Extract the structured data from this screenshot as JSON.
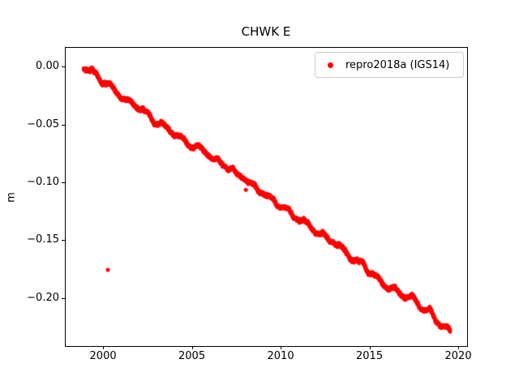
{
  "chart_data": {
    "type": "scatter",
    "title": "CHWK E",
    "xlabel": "",
    "ylabel": "m",
    "background": "#ffffff",
    "grid": false,
    "xlim": [
      1997.85,
      2020.5
    ],
    "ylim": [
      -0.2413,
      0.0168
    ],
    "xticks": {
      "values": [
        2000,
        2005,
        2010,
        2015,
        2020
      ],
      "labels": [
        "2000",
        "2005",
        "2010",
        "2015",
        "2020"
      ]
    },
    "yticks": {
      "values": [
        0.0,
        -0.05,
        -0.1,
        -0.15,
        -0.2
      ],
      "labels": [
        "0.00",
        "−0.05",
        "−0.10",
        "−0.15",
        "−0.20"
      ]
    },
    "legend": {
      "label": "repro2018a (IGS14)",
      "position": "upper right",
      "marker_color": "#ff0000",
      "border_color": "#cccccc"
    },
    "series": [
      {
        "name": "repro2018a (IGS14)",
        "color": "#ff0000",
        "marker": "dot",
        "marker_radius_px": 2.2,
        "trend": {
          "t_start": 1998.9,
          "t_end": 2019.55,
          "v_start": 0.0,
          "v_end": -0.2255,
          "slope_m_per_yr": -0.01092
        },
        "seasonal_amplitude_m": 0.0021,
        "noise_std_m": 0.0011,
        "points_per_year": 365,
        "sample_points": [
          [
            1999.0,
            -0.001
          ],
          [
            2001.0,
            -0.023
          ],
          [
            2003.0,
            -0.045
          ],
          [
            2005.0,
            -0.067
          ],
          [
            2007.0,
            -0.088
          ],
          [
            2009.0,
            -0.11
          ],
          [
            2011.0,
            -0.132
          ],
          [
            2013.0,
            -0.154
          ],
          [
            2015.0,
            -0.176
          ],
          [
            2017.0,
            -0.198
          ],
          [
            2019.0,
            -0.22
          ]
        ]
      }
    ],
    "outliers": [
      [
        2000.27,
        -0.1755
      ],
      [
        2008.04,
        -0.1065
      ]
    ]
  }
}
